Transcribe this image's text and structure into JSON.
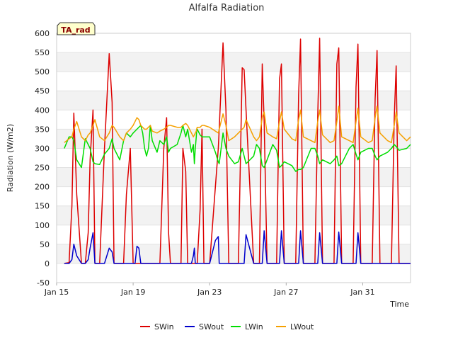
{
  "chart_data": {
    "type": "line",
    "title": "Alfalfa Radiation",
    "xlabel": "Time",
    "ylabel": "Radiation (W/m2)",
    "badge": "TA_rad",
    "ylim": [
      -50,
      600
    ],
    "yticks": [
      -50,
      0,
      50,
      100,
      150,
      200,
      250,
      300,
      350,
      400,
      450,
      500,
      550,
      600
    ],
    "xlim": [
      15.0,
      33.5
    ],
    "xticks": [
      {
        "value": 15,
        "label": "Jan 15"
      },
      {
        "value": 19,
        "label": "Jan 19"
      },
      {
        "value": 23,
        "label": "Jan 23"
      },
      {
        "value": 27,
        "label": "Jan 27"
      },
      {
        "value": 31,
        "label": "Jan 31"
      }
    ],
    "grid": true,
    "legend_position": "bottom",
    "series": [
      {
        "name": "SWin",
        "color": "#dd0000",
        "x": [
          15.4,
          15.65,
          15.8,
          15.9,
          16.05,
          16.3,
          16.5,
          16.65,
          16.75,
          16.9,
          17.0,
          17.25,
          17.5,
          17.75,
          17.9,
          18.0,
          18.3,
          18.5,
          18.65,
          18.85,
          19.0,
          19.1,
          19.2,
          19.3,
          19.4,
          19.5,
          19.6,
          19.7,
          19.8,
          19.9,
          20.0,
          20.25,
          20.4,
          20.6,
          20.75,
          20.85,
          20.95,
          21.3,
          21.5,
          21.6,
          21.75,
          21.85,
          22.05,
          22.15,
          22.2,
          22.25,
          22.3,
          22.32,
          22.35,
          22.5,
          22.6,
          22.7,
          23.0,
          23.3,
          23.45,
          23.5,
          23.7,
          23.85,
          24.0,
          24.3,
          24.5,
          24.7,
          24.8,
          24.9,
          25.3,
          25.45,
          25.6,
          25.75,
          25.85,
          26.0,
          26.3,
          26.5,
          26.65,
          26.75,
          26.9,
          27.3,
          27.5,
          27.65,
          27.75,
          27.9,
          28.3,
          28.5,
          28.65,
          28.75,
          28.9,
          29.3,
          29.5,
          29.65,
          29.75,
          29.9,
          30.3,
          30.5,
          30.65,
          30.75,
          30.9,
          31.3,
          31.5,
          31.65,
          31.75,
          31.9,
          32.3,
          32.5,
          32.65,
          32.75,
          32.9,
          33.3,
          33.5
        ],
        "y": [
          0,
          2,
          150,
          392,
          180,
          0,
          0,
          80,
          270,
          400,
          0,
          0,
          300,
          547,
          420,
          0,
          0,
          0,
          180,
          300,
          0,
          0,
          0,
          0,
          0,
          0,
          0,
          0,
          0,
          0,
          0,
          0,
          0,
          300,
          380,
          82,
          0,
          0,
          0,
          300,
          240,
          0,
          0,
          0,
          0,
          0,
          0,
          0,
          0,
          140,
          350,
          0,
          0,
          200,
          300,
          350,
          575,
          400,
          0,
          0,
          0,
          510,
          505,
          400,
          0,
          0,
          0,
          520,
          370,
          0,
          0,
          0,
          480,
          520,
          0,
          0,
          0,
          440,
          585,
          0,
          0,
          0,
          385,
          587,
          0,
          0,
          0,
          520,
          562,
          0,
          0,
          0,
          460,
          572,
          0,
          0,
          0,
          430,
          555,
          0,
          0,
          0,
          380,
          515,
          0,
          0,
          0
        ]
      },
      {
        "name": "SWout",
        "color": "#0000cc",
        "x": [
          15.4,
          15.65,
          15.8,
          15.9,
          16.05,
          16.3,
          16.5,
          16.65,
          16.75,
          16.9,
          17.0,
          17.25,
          17.5,
          17.75,
          17.9,
          18.0,
          18.3,
          18.5,
          18.65,
          18.85,
          19.0,
          19.1,
          19.2,
          19.3,
          19.4,
          19.5,
          19.6,
          19.7,
          19.8,
          19.9,
          20.0,
          20.25,
          20.4,
          20.6,
          20.75,
          20.85,
          20.95,
          21.3,
          21.5,
          21.6,
          21.75,
          21.85,
          22.05,
          22.15,
          22.2,
          22.25,
          22.3,
          22.32,
          22.35,
          22.5,
          22.6,
          22.7,
          23.0,
          23.3,
          23.45,
          23.5,
          23.7,
          23.85,
          24.0,
          24.3,
          24.5,
          24.7,
          24.8,
          24.9,
          25.3,
          25.45,
          25.6,
          25.75,
          25.85,
          26.0,
          26.3,
          26.5,
          26.65,
          26.75,
          26.9,
          27.3,
          27.5,
          27.65,
          27.75,
          27.9,
          28.3,
          28.5,
          28.65,
          28.75,
          28.9,
          29.3,
          29.5,
          29.65,
          29.75,
          29.9,
          30.3,
          30.5,
          30.65,
          30.75,
          30.9,
          31.3,
          31.5,
          31.65,
          31.75,
          31.9,
          32.3,
          32.5,
          32.65,
          32.75,
          32.9,
          33.3,
          33.5
        ],
        "y": [
          0,
          0,
          10,
          50,
          20,
          0,
          0,
          10,
          40,
          80,
          0,
          0,
          0,
          40,
          30,
          0,
          0,
          0,
          0,
          0,
          0,
          0,
          45,
          40,
          0,
          0,
          0,
          0,
          0,
          0,
          0,
          0,
          0,
          0,
          0,
          0,
          0,
          0,
          0,
          0,
          0,
          0,
          0,
          20,
          40,
          0,
          0,
          0,
          0,
          0,
          0,
          0,
          0,
          60,
          70,
          0,
          0,
          0,
          0,
          0,
          0,
          0,
          0,
          75,
          0,
          0,
          0,
          0,
          85,
          0,
          0,
          0,
          0,
          85,
          0,
          0,
          0,
          0,
          85,
          0,
          0,
          0,
          0,
          80,
          0,
          0,
          0,
          0,
          82,
          0,
          0,
          0,
          0,
          80,
          0,
          0,
          0,
          0,
          0,
          0,
          0,
          0,
          0,
          0,
          0,
          0,
          0
        ]
      },
      {
        "name": "LWin",
        "color": "#00dd00",
        "x": [
          15.4,
          15.65,
          15.8,
          15.9,
          16.05,
          16.3,
          16.5,
          16.65,
          16.75,
          16.9,
          17.0,
          17.25,
          17.5,
          17.75,
          17.9,
          18.0,
          18.3,
          18.5,
          18.65,
          18.85,
          19.0,
          19.1,
          19.2,
          19.3,
          19.4,
          19.5,
          19.6,
          19.7,
          19.8,
          19.9,
          20.0,
          20.25,
          20.4,
          20.6,
          20.75,
          20.85,
          20.95,
          21.3,
          21.5,
          21.6,
          21.75,
          21.85,
          22.05,
          22.15,
          22.2,
          22.25,
          22.3,
          22.32,
          22.35,
          22.5,
          22.6,
          22.7,
          23.0,
          23.3,
          23.45,
          23.5,
          23.7,
          23.85,
          24.0,
          24.3,
          24.5,
          24.7,
          24.8,
          24.9,
          25.3,
          25.45,
          25.6,
          25.75,
          25.85,
          26.0,
          26.3,
          26.5,
          26.65,
          26.75,
          26.9,
          27.3,
          27.5,
          27.65,
          27.75,
          27.9,
          28.3,
          28.5,
          28.65,
          28.75,
          28.9,
          29.3,
          29.5,
          29.65,
          29.75,
          29.9,
          30.3,
          30.5,
          30.65,
          30.75,
          30.9,
          31.3,
          31.5,
          31.65,
          31.75,
          31.9,
          32.3,
          32.5,
          32.65,
          32.75,
          32.9,
          33.3,
          33.5
        ],
        "y": [
          300,
          330,
          330,
          320,
          270,
          250,
          325,
          310,
          300,
          265,
          260,
          258,
          285,
          300,
          325,
          300,
          270,
          320,
          340,
          330,
          340,
          345,
          350,
          355,
          360,
          340,
          300,
          280,
          300,
          360,
          320,
          290,
          320,
          310,
          330,
          290,
          300,
          310,
          340,
          360,
          330,
          350,
          290,
          310,
          260,
          300,
          330,
          345,
          350,
          335,
          330,
          330,
          330,
          290,
          265,
          260,
          340,
          300,
          280,
          260,
          265,
          300,
          280,
          260,
          280,
          310,
          300,
          255,
          250,
          270,
          310,
          295,
          250,
          255,
          265,
          255,
          240,
          245,
          245,
          250,
          300,
          300,
          280,
          260,
          270,
          260,
          270,
          280,
          255,
          260,
          300,
          310,
          285,
          270,
          290,
          300,
          300,
          280,
          270,
          280,
          290,
          300,
          310,
          305,
          295,
          300,
          310
        ]
      },
      {
        "name": "LWout",
        "color": "#f5a000",
        "x": [
          15.4,
          15.65,
          15.8,
          15.9,
          16.05,
          16.3,
          16.5,
          16.65,
          16.75,
          16.9,
          17.0,
          17.25,
          17.5,
          17.75,
          17.9,
          18.0,
          18.3,
          18.5,
          18.65,
          18.85,
          19.0,
          19.1,
          19.2,
          19.3,
          19.4,
          19.5,
          19.6,
          19.7,
          19.8,
          19.9,
          20.0,
          20.25,
          20.4,
          20.6,
          20.75,
          20.85,
          20.95,
          21.3,
          21.5,
          21.6,
          21.75,
          21.85,
          22.05,
          22.15,
          22.2,
          22.25,
          22.3,
          22.32,
          22.35,
          22.5,
          22.6,
          22.7,
          23.0,
          23.3,
          23.45,
          23.5,
          23.7,
          23.85,
          24.0,
          24.3,
          24.5,
          24.7,
          24.8,
          24.9,
          25.3,
          25.45,
          25.6,
          25.75,
          25.85,
          26.0,
          26.3,
          26.5,
          26.65,
          26.75,
          26.9,
          27.3,
          27.5,
          27.65,
          27.75,
          27.9,
          28.3,
          28.5,
          28.65,
          28.75,
          28.9,
          29.3,
          29.5,
          29.65,
          29.75,
          29.9,
          30.3,
          30.5,
          30.65,
          30.75,
          30.9,
          31.3,
          31.5,
          31.65,
          31.75,
          31.9,
          32.3,
          32.5,
          32.65,
          32.75,
          32.9,
          33.3,
          33.5
        ],
        "y": [
          315,
          325,
          330,
          350,
          370,
          330,
          320,
          335,
          340,
          360,
          375,
          330,
          320,
          340,
          360,
          355,
          330,
          320,
          340,
          350,
          360,
          370,
          380,
          375,
          360,
          355,
          350,
          350,
          355,
          360,
          345,
          340,
          345,
          350,
          355,
          360,
          360,
          355,
          355,
          360,
          365,
          360,
          340,
          330,
          335,
          340,
          345,
          350,
          355,
          355,
          360,
          360,
          355,
          345,
          340,
          350,
          390,
          360,
          320,
          330,
          340,
          350,
          355,
          375,
          330,
          320,
          330,
          380,
          395,
          340,
          330,
          325,
          370,
          395,
          350,
          325,
          320,
          375,
          400,
          330,
          320,
          315,
          370,
          400,
          335,
          315,
          320,
          370,
          410,
          330,
          320,
          315,
          370,
          405,
          330,
          315,
          320,
          380,
          410,
          340,
          320,
          315,
          360,
          395,
          340,
          320,
          330
        ]
      }
    ]
  }
}
